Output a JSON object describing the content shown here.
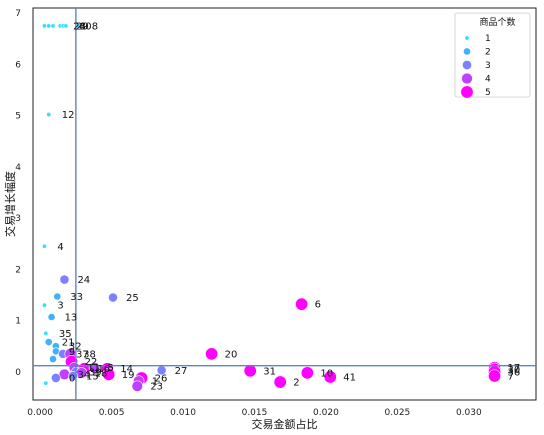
{
  "chart_data": {
    "type": "scatter",
    "xlabel": "交易金额占比",
    "ylabel": "交易增长幅度",
    "xlim": [
      -0.0005,
      0.0347
    ],
    "ylim": [
      -0.55,
      7.1
    ],
    "xticks": [
      0.0,
      0.005,
      0.01,
      0.015,
      0.02,
      0.025,
      0.03
    ],
    "xtick_labels": [
      "0.000",
      "0.005",
      "0.010",
      "0.015",
      "0.020",
      "0.025",
      "0.030"
    ],
    "yticks": [
      0,
      1,
      2,
      3,
      4,
      5,
      6,
      7
    ],
    "ytick_labels": [
      "0",
      "1",
      "2",
      "3",
      "4",
      "5",
      "6",
      "7"
    ],
    "reference_lines": {
      "x": 0.0025,
      "y": 0.12
    },
    "legend": {
      "title": "商品个数",
      "placement": "upper right",
      "entries": [
        {
          "label": "1",
          "color": "#33e0ff"
        },
        {
          "label": "2",
          "color": "#40b0ff"
        },
        {
          "label": "3",
          "color": "#7f80ff"
        },
        {
          "label": "4",
          "color": "#bf40ff"
        },
        {
          "label": "5",
          "color": "#ff00ff"
        }
      ]
    },
    "points": [
      {
        "label": "",
        "x": 0.0003,
        "y": 6.75,
        "count": 1
      },
      {
        "label": "",
        "x": 0.0006,
        "y": 6.75,
        "count": 1
      },
      {
        "label": "",
        "x": 0.0009,
        "y": 6.75,
        "count": 1
      },
      {
        "label": "28",
        "x": 0.0014,
        "y": 6.75,
        "count": 1
      },
      {
        "label": "29",
        "x": 0.0016,
        "y": 6.75,
        "count": 1
      },
      {
        "label": "40",
        "x": 0.0018,
        "y": 6.75,
        "count": 1
      },
      {
        "label": "8",
        "x": 0.0027,
        "y": 6.75,
        "count": 1
      },
      {
        "label": "12",
        "x": 0.0006,
        "y": 5.02,
        "count": 1
      },
      {
        "label": "4",
        "x": 0.0003,
        "y": 2.45,
        "count": 1
      },
      {
        "label": "24",
        "x": 0.0017,
        "y": 1.8,
        "count": 3
      },
      {
        "label": "33",
        "x": 0.0012,
        "y": 1.47,
        "count": 2
      },
      {
        "label": "3",
        "x": 0.0003,
        "y": 1.3,
        "count": 1
      },
      {
        "label": "25",
        "x": 0.0051,
        "y": 1.45,
        "count": 3
      },
      {
        "label": "13",
        "x": 0.0008,
        "y": 1.07,
        "count": 2
      },
      {
        "label": "6",
        "x": 0.0183,
        "y": 1.32,
        "count": 5
      },
      {
        "label": "35",
        "x": 0.0004,
        "y": 0.75,
        "count": 1
      },
      {
        "label": "21",
        "x": 0.0006,
        "y": 0.58,
        "count": 2
      },
      {
        "label": "32",
        "x": 0.0011,
        "y": 0.5,
        "count": 2
      },
      {
        "label": "9",
        "x": 0.0011,
        "y": 0.4,
        "count": 2
      },
      {
        "label": "37",
        "x": 0.0016,
        "y": 0.35,
        "count": 3
      },
      {
        "label": "38",
        "x": 0.0021,
        "y": 0.35,
        "count": 4
      },
      {
        "label": "",
        "x": 0.0009,
        "y": 0.25,
        "count": 2
      },
      {
        "label": "20",
        "x": 0.012,
        "y": 0.35,
        "count": 5
      },
      {
        "label": "22",
        "x": 0.0022,
        "y": 0.2,
        "count": 5
      },
      {
        "label": "11",
        "x": 0.0024,
        "y": 0.08,
        "count": 4
      },
      {
        "label": "16",
        "x": 0.0031,
        "y": 0.06,
        "count": 5
      },
      {
        "label": "5",
        "x": 0.0038,
        "y": 0.08,
        "count": 4
      },
      {
        "label": "14",
        "x": 0.0047,
        "y": 0.06,
        "count": 5
      },
      {
        "label": "39",
        "x": 0.0025,
        "y": 0.0,
        "count": 3
      },
      {
        "label": "18",
        "x": 0.0029,
        "y": -0.02,
        "count": 4
      },
      {
        "label": "19",
        "x": 0.0048,
        "y": -0.05,
        "count": 5
      },
      {
        "label": "34",
        "x": 0.0017,
        "y": -0.05,
        "count": 4
      },
      {
        "label": "15",
        "x": 0.0023,
        "y": -0.08,
        "count": 3
      },
      {
        "label": "27",
        "x": 0.0085,
        "y": 0.03,
        "count": 3
      },
      {
        "label": "26",
        "x": 0.0071,
        "y": -0.12,
        "count": 5
      },
      {
        "label": "1",
        "x": 0.0069,
        "y": -0.18,
        "count": 4
      },
      {
        "label": "23",
        "x": 0.0068,
        "y": -0.28,
        "count": 4
      },
      {
        "label": "0",
        "x": 0.0011,
        "y": -0.12,
        "count": 3
      },
      {
        "label": "",
        "x": 0.0004,
        "y": -0.22,
        "count": 1
      },
      {
        "label": "31",
        "x": 0.0147,
        "y": 0.02,
        "count": 5
      },
      {
        "label": "10",
        "x": 0.0187,
        "y": -0.02,
        "count": 5
      },
      {
        "label": "2",
        "x": 0.0168,
        "y": -0.2,
        "count": 5
      },
      {
        "label": "41",
        "x": 0.0203,
        "y": -0.1,
        "count": 5
      },
      {
        "label": "17",
        "x": 0.0318,
        "y": 0.08,
        "count": 5
      },
      {
        "label": "30",
        "x": 0.0318,
        "y": 0.05,
        "count": 5
      },
      {
        "label": "36",
        "x": 0.0318,
        "y": 0.0,
        "count": 5
      },
      {
        "label": "7",
        "x": 0.0318,
        "y": -0.08,
        "count": 5
      }
    ]
  }
}
